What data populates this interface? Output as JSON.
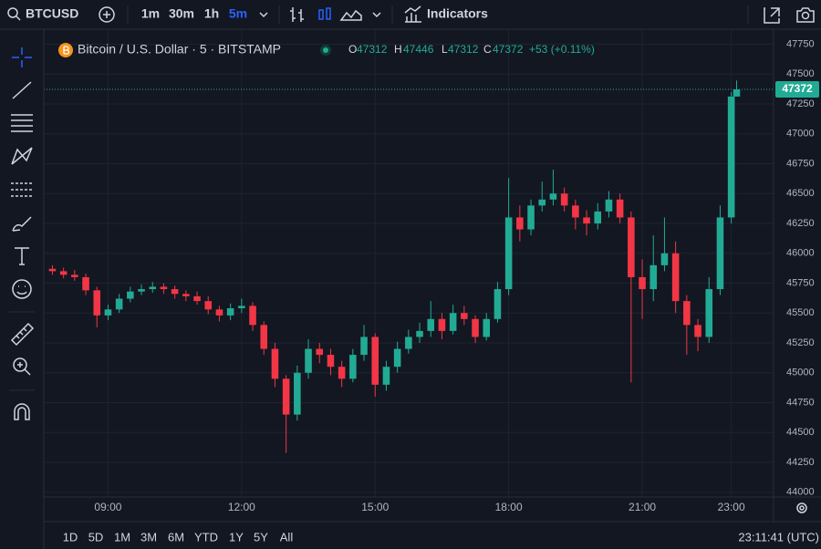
{
  "toolbar": {
    "symbol": "BTCUSD",
    "intervals": [
      "1m",
      "30m",
      "1h",
      "5m"
    ],
    "indicators": "Indicators"
  },
  "legend": {
    "title": "Bitcoin / U.S. Dollar · 5 · BITSTAMP",
    "ohlc_labels": [
      "O",
      "H",
      "L",
      "C"
    ],
    "change": "+53 (+0.11%)"
  },
  "chart_data": {
    "type": "candlestick",
    "up_color": "#22ab94",
    "down_color": "#f23645",
    "grid": true,
    "last_price_line": true,
    "x": [
      7.75,
      8,
      8.25,
      8.5,
      8.75,
      9,
      9.25,
      9.5,
      9.75,
      10,
      10.25,
      10.5,
      10.75,
      11,
      11.25,
      11.5,
      11.75,
      12,
      12.25,
      12.5,
      12.75,
      13,
      13.25,
      13.5,
      13.75,
      14,
      14.25,
      14.5,
      14.75,
      15,
      15.25,
      15.5,
      15.75,
      16,
      16.25,
      16.5,
      16.75,
      17,
      17.25,
      17.5,
      17.75,
      18,
      18.25,
      18.5,
      18.75,
      19,
      19.25,
      19.5,
      19.75,
      20,
      20.25,
      20.5,
      20.75,
      21,
      21.25,
      21.5,
      21.75,
      22,
      22.25,
      22.5,
      22.75,
      23,
      23.12
    ],
    "open": [
      45870,
      45850,
      45820,
      45800,
      45690,
      45480,
      45530,
      45620,
      45680,
      45700,
      45720,
      45700,
      45660,
      45640,
      45600,
      45530,
      45480,
      45540,
      45560,
      45400,
      45200,
      44950,
      44650,
      45000,
      45200,
      45150,
      45050,
      44950,
      45150,
      45300,
      44900,
      45050,
      45200,
      45300,
      45350,
      45450,
      45350,
      45500,
      45450,
      45300,
      45450,
      45700,
      46300,
      46200,
      46400,
      46450,
      46500,
      46400,
      46300,
      46250,
      46350,
      46450,
      46300,
      45800,
      45700,
      45900,
      46000,
      45600,
      45400,
      45300,
      45700,
      46300,
      47312
    ],
    "high": [
      45900,
      45880,
      45860,
      45830,
      45720,
      45570,
      45660,
      45720,
      45740,
      45760,
      45750,
      45730,
      45690,
      45680,
      45640,
      45560,
      45580,
      45620,
      45590,
      45430,
      45250,
      44980,
      45060,
      45280,
      45250,
      45200,
      45100,
      45200,
      45400,
      45330,
      45100,
      45260,
      45360,
      45420,
      45600,
      45500,
      45570,
      45560,
      45480,
      45500,
      45760,
      46630,
      46400,
      46450,
      46600,
      46700,
      46550,
      46450,
      46360,
      46420,
      46520,
      46500,
      46350,
      45950,
      46150,
      46300,
      46100,
      45650,
      45450,
      45800,
      46400,
      47350,
      47446
    ],
    "low": [
      45820,
      45790,
      45770,
      45650,
      45380,
      45440,
      45500,
      45590,
      45650,
      45670,
      45660,
      45620,
      45600,
      45570,
      45490,
      45430,
      45440,
      45500,
      45350,
      45150,
      44880,
      44330,
      44600,
      44950,
      45080,
      44980,
      44880,
      44920,
      45100,
      44800,
      44850,
      45000,
      45160,
      45250,
      45300,
      45280,
      45320,
      45400,
      45250,
      45270,
      45420,
      45650,
      46100,
      46150,
      46350,
      46400,
      46350,
      46200,
      46150,
      46200,
      46300,
      46250,
      44920,
      45450,
      45600,
      45850,
      45500,
      45150,
      45180,
      45250,
      45650,
      46250,
      47312
    ],
    "close": [
      45850,
      45820,
      45800,
      45690,
      45480,
      45530,
      45620,
      45680,
      45700,
      45720,
      45700,
      45660,
      45640,
      45600,
      45530,
      45480,
      45540,
      45560,
      45400,
      45200,
      44950,
      44650,
      45000,
      45200,
      45150,
      45050,
      44950,
      45150,
      45300,
      44900,
      45050,
      45200,
      45300,
      45350,
      45450,
      45350,
      45500,
      45450,
      45300,
      45450,
      45700,
      46300,
      46200,
      46400,
      46450,
      46500,
      46400,
      46300,
      46250,
      46350,
      46450,
      46300,
      45800,
      45700,
      45900,
      46000,
      45600,
      45400,
      45300,
      45700,
      46300,
      47312,
      47372
    ],
    "xlim": [
      7.7,
      23.95
    ],
    "xticks": [
      {
        "value": 9,
        "label": "09:00"
      },
      {
        "value": 12,
        "label": "12:00"
      },
      {
        "value": 15,
        "label": "15:00"
      },
      {
        "value": 18,
        "label": "18:00"
      },
      {
        "value": 21,
        "label": "21:00"
      },
      {
        "value": 23,
        "label": "23:00"
      }
    ],
    "ylim": [
      43960,
      47830
    ],
    "yticks": [
      44000,
      44250,
      44500,
      44750,
      45000,
      45250,
      45500,
      45750,
      46000,
      46250,
      46500,
      46750,
      47000,
      47250,
      47500,
      47750
    ]
  },
  "footer": {
    "ranges": [
      "1D",
      "5D",
      "1M",
      "3M",
      "6M",
      "YTD",
      "1Y",
      "5Y",
      "All"
    ],
    "clock": "23:11:41 (UTC)"
  }
}
